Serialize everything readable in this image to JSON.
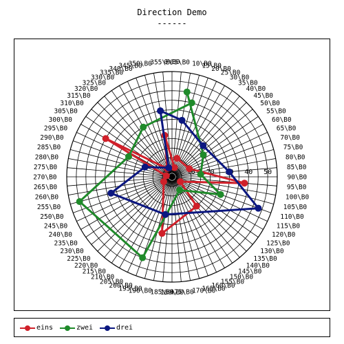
{
  "chart_data": {
    "type": "radar",
    "title": "Direction Demo",
    "subtitle": "------",
    "radial_ticks": [
      "10",
      "20",
      "30",
      "40",
      "50"
    ],
    "rmax": 55,
    "angle_step_deg": 5,
    "angle_label_suffix": "\\B0",
    "series": [
      {
        "name": "eins",
        "color": "#d0202a",
        "points": [
          [
            15,
            10
          ],
          [
            65,
            10
          ],
          [
            95,
            38
          ],
          [
            120,
            5
          ],
          [
            140,
            20
          ],
          [
            190,
            30
          ],
          [
            240,
            5
          ],
          [
            280,
            3
          ],
          [
            300,
            40
          ],
          [
            330,
            5
          ],
          [
            350,
            22
          ],
          [
            15,
            5
          ]
        ]
      },
      {
        "name": "zwei",
        "color": "#1f8a2a",
        "points": [
          [
            10,
            45
          ],
          [
            55,
            20
          ],
          [
            85,
            15
          ],
          [
            110,
            27
          ],
          [
            150,
            8
          ],
          [
            200,
            45
          ],
          [
            255,
            50
          ],
          [
            295,
            25
          ],
          [
            330,
            30
          ],
          [
            15,
            40
          ]
        ]
      },
      {
        "name": "drei",
        "color": "#0b1780",
        "points": [
          [
            350,
            35
          ],
          [
            10,
            30
          ],
          [
            45,
            23
          ],
          [
            85,
            30
          ],
          [
            110,
            48
          ],
          [
            190,
            20
          ],
          [
            255,
            33
          ],
          [
            290,
            15
          ],
          [
            340,
            5
          ],
          [
            350,
            35
          ]
        ]
      }
    ]
  },
  "legend": {
    "items": [
      {
        "label": "eins",
        "color": "#d0202a"
      },
      {
        "label": "zwei",
        "color": "#1f8a2a"
      },
      {
        "label": "drei",
        "color": "#0b1780"
      }
    ]
  }
}
